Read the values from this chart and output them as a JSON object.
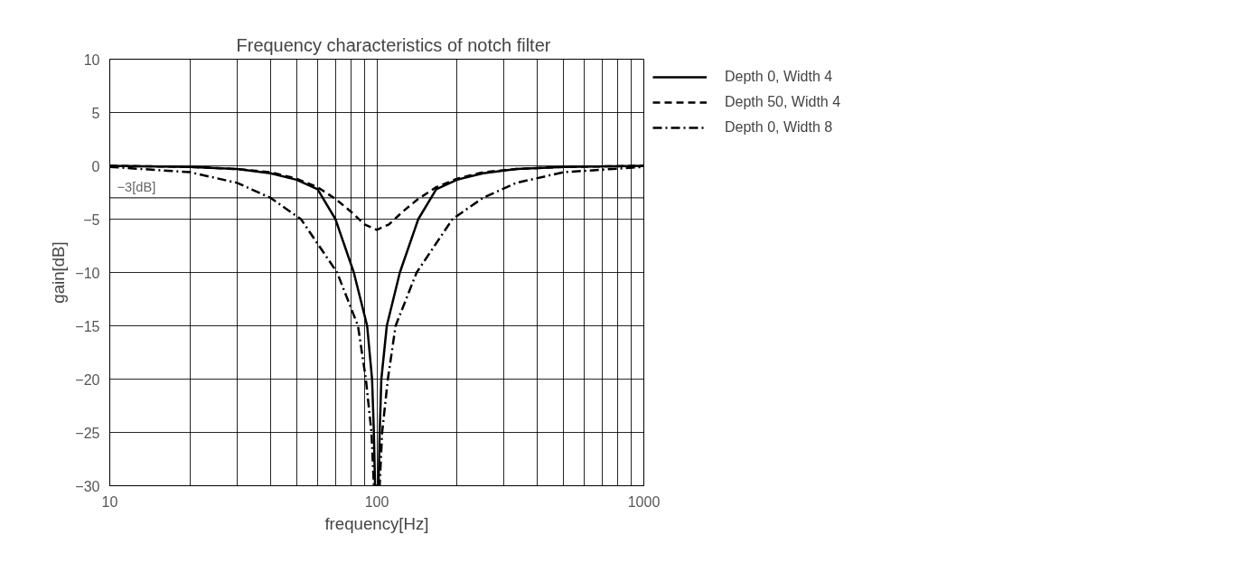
{
  "chart_data": {
    "type": "line",
    "title": "Frequency characteristics of notch filter",
    "xlabel": "frequency[Hz]",
    "ylabel": "gain[dB]",
    "log": "x",
    "grid": true,
    "legend": "top right",
    "marker": "none",
    "xlim": [
      10,
      1000
    ],
    "ylim": [
      -30,
      10
    ],
    "xticks": [
      10,
      {
        "value": 20,
        "label": null
      },
      {
        "value": 30,
        "label": null
      },
      {
        "value": 40,
        "label": null
      },
      {
        "value": 50,
        "label": null
      },
      {
        "value": 60,
        "label": null
      },
      {
        "value": 70,
        "label": null
      },
      {
        "value": 80,
        "label": null
      },
      {
        "value": 90,
        "label": null
      },
      100,
      {
        "value": 200,
        "label": null
      },
      {
        "value": 300,
        "label": null
      },
      {
        "value": 400,
        "label": null
      },
      {
        "value": 500,
        "label": null
      },
      {
        "value": 600,
        "label": null
      },
      {
        "value": 700,
        "label": null
      },
      {
        "value": 800,
        "label": null
      },
      {
        "value": 900,
        "label": null
      },
      1000
    ],
    "yticks": [
      10,
      5,
      0,
      {
        "value": -5,
        "label": "−5"
      },
      {
        "value": -10,
        "label": "−10"
      },
      {
        "value": -15,
        "label": "−15"
      },
      {
        "value": -20,
        "label": "−20"
      },
      {
        "value": -25,
        "label": "−25"
      },
      {
        "value": -30,
        "label": "−30"
      }
    ],
    "ref_lines": [
      {
        "axis": "y",
        "value": -3,
        "label": "−3[dB]"
      }
    ],
    "series": [
      {
        "name": "Depth 0, Width 4",
        "color": "#000000",
        "line_style": "solid",
        "x": [
          10,
          20,
          30,
          40,
          50,
          60,
          70,
          82,
          92,
          96,
          97.5,
          98.5,
          101.5,
          102.5,
          104,
          109,
          122,
          143,
          167,
          200,
          250,
          333,
          500,
          1000
        ],
        "values": [
          0,
          -0.1,
          -0.3,
          -0.7,
          -1.3,
          -2.2,
          -5,
          -10,
          -15,
          -20,
          -25,
          -30,
          -30,
          -25,
          -20,
          -15,
          -10,
          -5,
          -2.2,
          -1.3,
          -0.7,
          -0.3,
          -0.1,
          0
        ]
      },
      {
        "name": "Depth 50, Width 4",
        "color": "#000000",
        "line_style": "dashed",
        "x": [
          10,
          20,
          30,
          40,
          50,
          60,
          70,
          80,
          90,
          100,
          111,
          125,
          143,
          167,
          200,
          250,
          333,
          500,
          1000
        ],
        "values": [
          0,
          -0.1,
          -0.3,
          -0.6,
          -1.2,
          -2,
          -3.1,
          -4.3,
          -5.5,
          -6,
          -5.5,
          -4.3,
          -3.1,
          -2,
          -1.2,
          -0.6,
          -0.3,
          -0.1,
          0
        ]
      },
      {
        "name": "Depth 0, Width 8",
        "color": "#000000",
        "line_style": "dashdot",
        "x": [
          10,
          20,
          30,
          40,
          52,
          71,
          85,
          91,
          95.5,
          97.5,
          102.5,
          104.7,
          110,
          117.6,
          141,
          192,
          250,
          333,
          500,
          1000
        ],
        "values": [
          -0.1,
          -0.6,
          -1.6,
          -3,
          -5,
          -10,
          -15,
          -20,
          -25,
          -30,
          -30,
          -25,
          -20,
          -15,
          -10,
          -5,
          -3,
          -1.6,
          -0.6,
          -0.1
        ]
      }
    ]
  }
}
